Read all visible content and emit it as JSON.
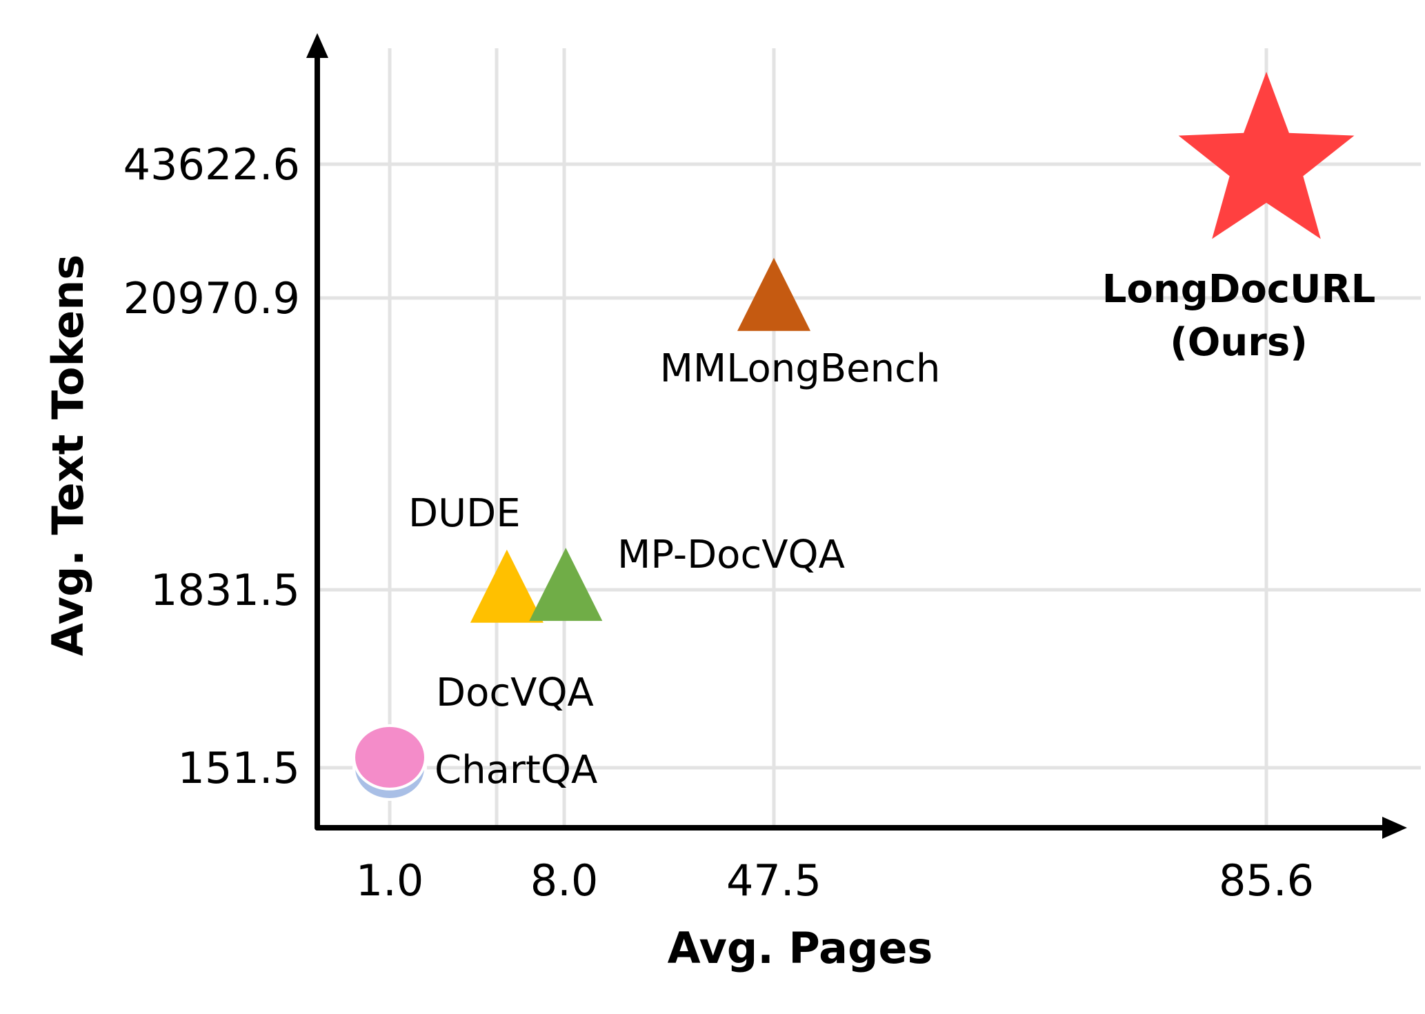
{
  "chart_data": {
    "type": "scatter",
    "title": "",
    "xlabel": "Avg. Pages",
    "ylabel": "Avg. Text Tokens",
    "x_ticks": [
      1.0,
      8.0,
      47.5,
      85.6
    ],
    "x_tick_labels": [
      "1.0",
      "8.0",
      "47.5",
      "85.6"
    ],
    "y_ticks": [
      151.5,
      1831.5,
      20970.9,
      43622.6
    ],
    "y_tick_labels": [
      "151.5",
      "1831.5",
      "20970.9",
      "43622.6"
    ],
    "grid": true,
    "series": [
      {
        "name": "ChartQA",
        "x": 1.0,
        "y": 151.5,
        "marker": "circle",
        "color": "#A9BFE6"
      },
      {
        "name": "DocVQA",
        "x": 1.0,
        "y": 250.0,
        "marker": "circle",
        "color": "#F48CC9"
      },
      {
        "name": "DUDE",
        "x": 5.7,
        "y": 1831.5,
        "marker": "triangle",
        "color": "#FFC000"
      },
      {
        "name": "MP-DocVQA",
        "x": 8.3,
        "y": 1950.0,
        "marker": "triangle",
        "color": "#70AD47"
      },
      {
        "name": "MMLongBench",
        "x": 47.5,
        "y": 20970.9,
        "marker": "triangle",
        "color": "#C55A11"
      },
      {
        "name": "LongDocURL\n(Ours)",
        "x": 85.6,
        "y": 43622.6,
        "marker": "star",
        "color": "#FF4040"
      }
    ],
    "labels": {
      "chartqa": "ChartQA",
      "docvqa": "DocVQA",
      "dude": "DUDE",
      "mpdocvqa": "MP-DocVQA",
      "mmlongbench": "MMLongBench",
      "longdocurl_line1": "LongDocURL",
      "longdocurl_line2": "(Ours)"
    },
    "colors": {
      "axis": "#000000",
      "grid": "#E3E3E3"
    }
  }
}
